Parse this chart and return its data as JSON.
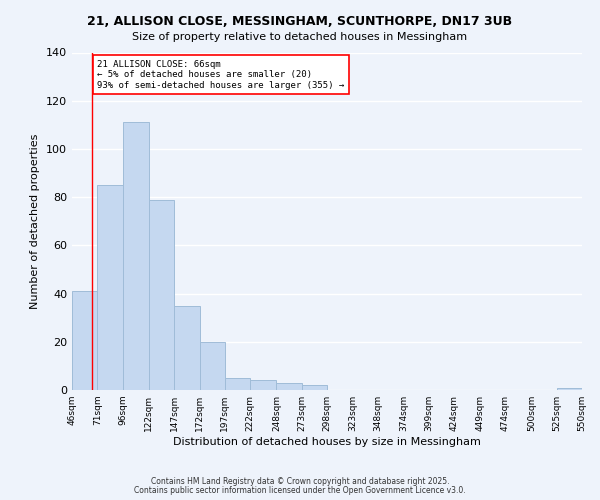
{
  "title1": "21, ALLISON CLOSE, MESSINGHAM, SCUNTHORPE, DN17 3UB",
  "title2": "Size of property relative to detached houses in Messingham",
  "xlabel": "Distribution of detached houses by size in Messingham",
  "ylabel": "Number of detached properties",
  "bar_color": "#c5d8f0",
  "bar_edgecolor": "#a0bcd8",
  "bins": [
    46,
    71,
    96,
    122,
    147,
    172,
    197,
    222,
    248,
    273,
    298,
    323,
    348,
    374,
    399,
    424,
    449,
    474,
    500,
    525,
    550
  ],
  "bin_labels": [
    "46sqm",
    "71sqm",
    "96sqm",
    "122sqm",
    "147sqm",
    "172sqm",
    "197sqm",
    "222sqm",
    "248sqm",
    "273sqm",
    "298sqm",
    "323sqm",
    "348sqm",
    "374sqm",
    "399sqm",
    "424sqm",
    "449sqm",
    "474sqm",
    "500sqm",
    "525sqm",
    "550sqm"
  ],
  "counts": [
    41,
    85,
    111,
    79,
    35,
    20,
    5,
    4,
    3,
    2,
    0,
    0,
    0,
    0,
    0,
    0,
    0,
    0,
    0,
    1
  ],
  "ylim": [
    0,
    140
  ],
  "yticks": [
    0,
    20,
    40,
    60,
    80,
    100,
    120,
    140
  ],
  "red_line_x": 66,
  "annotation_line1": "21 ALLISON CLOSE: 66sqm",
  "annotation_line2": "← 5% of detached houses are smaller (20)",
  "annotation_line3": "93% of semi-detached houses are larger (355) →",
  "footer1": "Contains HM Land Registry data © Crown copyright and database right 2025.",
  "footer2": "Contains public sector information licensed under the Open Government Licence v3.0.",
  "background_color": "#eef3fb",
  "grid_color": "#ffffff"
}
